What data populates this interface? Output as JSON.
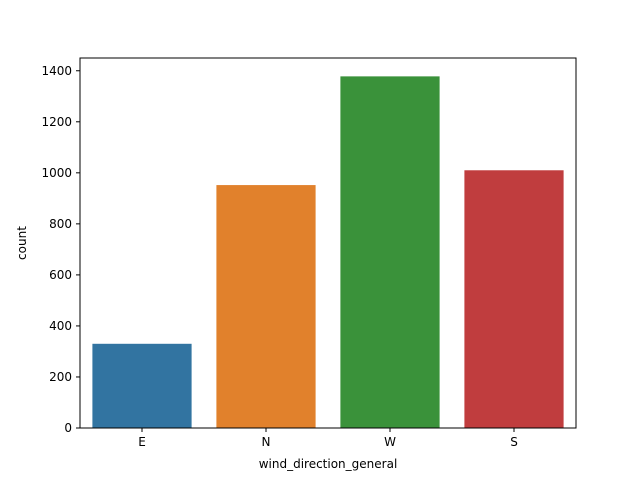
{
  "chart_data": {
    "type": "bar",
    "categories": [
      "E",
      "N",
      "W",
      "S"
    ],
    "values": [
      330,
      952,
      1378,
      1010
    ],
    "xlabel": "wind_direction_general",
    "ylabel": "count",
    "ylim": [
      0,
      1450
    ],
    "yticks": [
      0,
      200,
      400,
      600,
      800,
      1000,
      1200,
      1400
    ],
    "colors": [
      "#3274a1",
      "#e1812c",
      "#3a923a",
      "#c03d3e"
    ],
    "grid": false,
    "legend": "none"
  }
}
